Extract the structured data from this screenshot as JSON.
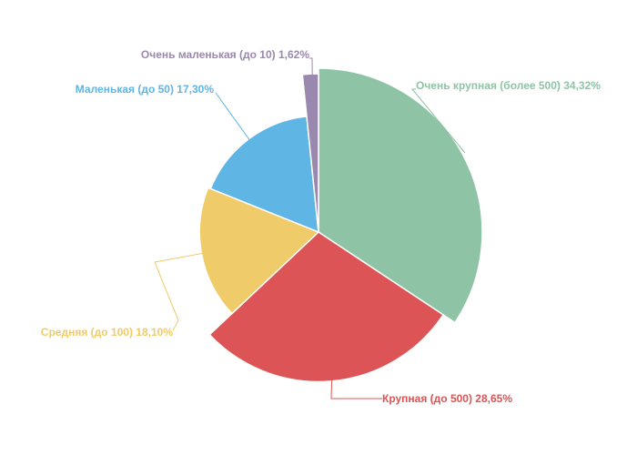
{
  "chart_data": {
    "type": "pie",
    "variant": "variable-radius (rose) pie",
    "slices": [
      {
        "label": "Очень крупная (более 500)",
        "percent_text": "34,32%",
        "value": 34.32,
        "color": "#8fc3a6"
      },
      {
        "label": "Крупная (до 500)",
        "percent_text": "28,65%",
        "value": 28.65,
        "color": "#dc5455"
      },
      {
        "label": "Средняя (до 100)",
        "percent_text": "18,10%",
        "value": 18.1,
        "color": "#efcb6a"
      },
      {
        "label": "Маленькая (до 50)",
        "percent_text": "17,30%",
        "value": 17.3,
        "color": "#5fb5e4"
      },
      {
        "label": "Очень маленькая (до 10)",
        "percent_text": "1,62%",
        "value": 1.62,
        "color": "#9b88ae"
      }
    ]
  }
}
